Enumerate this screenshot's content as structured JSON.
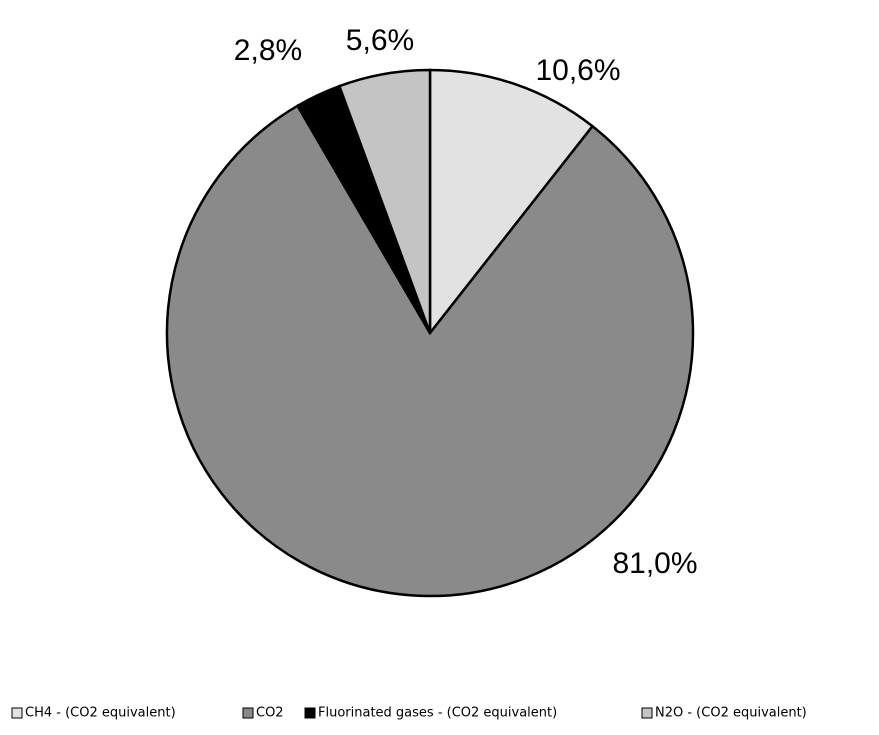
{
  "chart_data": {
    "type": "pie",
    "categories": [
      "CH4 - (CO2 equivalent)",
      "CO2",
      "Fluorinated gases - (CO2 equivalent)",
      "N2O - (CO2 equivalent)"
    ],
    "values": [
      10.6,
      81.0,
      2.8,
      5.6
    ],
    "value_labels": [
      "10,6%",
      "81,0%",
      "2,8%",
      "5,6%"
    ],
    "colors": [
      "#e2e2e2",
      "#8a8a8a",
      "#000000",
      "#c4c4c4"
    ],
    "legend": "bottom"
  }
}
